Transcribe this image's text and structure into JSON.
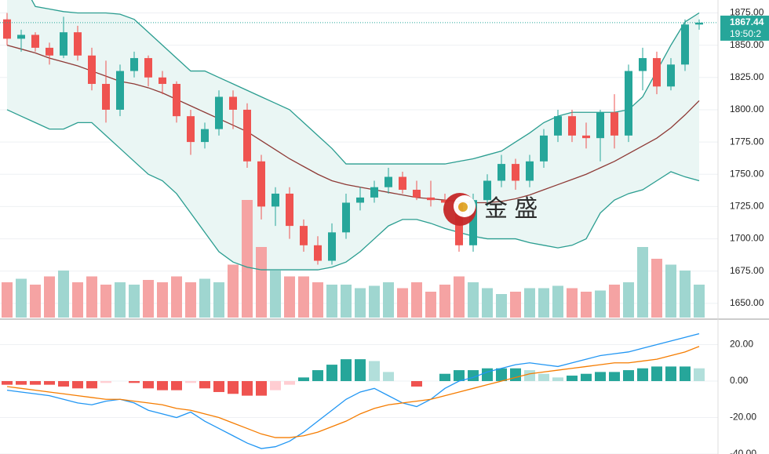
{
  "chart_data": [
    {
      "type": "candlestick",
      "open": [
        1870,
        1855,
        1858,
        1848,
        1842,
        1860,
        1842,
        1820,
        1800,
        1830,
        1840,
        1825,
        1820,
        1795,
        1775,
        1785,
        1810,
        1800,
        1760,
        1725,
        1735,
        1710,
        1695,
        1683,
        1705,
        1728,
        1732,
        1740,
        1748,
        1738,
        1732,
        1730,
        1728,
        1695,
        1730,
        1745,
        1758,
        1745,
        1760,
        1780,
        1795,
        1780,
        1778,
        1798,
        1780,
        1830,
        1840,
        1818,
        1835,
        1866
      ],
      "high": [
        1875,
        1862,
        1860,
        1852,
        1872,
        1865,
        1848,
        1838,
        1835,
        1845,
        1842,
        1830,
        1822,
        1800,
        1790,
        1815,
        1815,
        1805,
        1765,
        1740,
        1740,
        1715,
        1702,
        1712,
        1735,
        1740,
        1745,
        1755,
        1752,
        1745,
        1745,
        1735,
        1732,
        1735,
        1750,
        1765,
        1762,
        1765,
        1785,
        1800,
        1800,
        1790,
        1800,
        1812,
        1835,
        1848,
        1845,
        1840,
        1870,
        1870
      ],
      "low": [
        1850,
        1845,
        1845,
        1835,
        1840,
        1838,
        1815,
        1790,
        1795,
        1825,
        1818,
        1812,
        1790,
        1765,
        1770,
        1780,
        1785,
        1755,
        1715,
        1710,
        1700,
        1690,
        1680,
        1680,
        1700,
        1722,
        1728,
        1735,
        1735,
        1730,
        1725,
        1722,
        1690,
        1690,
        1725,
        1740,
        1738,
        1740,
        1755,
        1775,
        1775,
        1770,
        1760,
        1770,
        1775,
        1815,
        1812,
        1815,
        1830,
        1862
      ],
      "close": [
        1855,
        1858,
        1848,
        1842,
        1860,
        1842,
        1820,
        1800,
        1830,
        1840,
        1825,
        1820,
        1795,
        1775,
        1785,
        1810,
        1800,
        1760,
        1725,
        1735,
        1710,
        1695,
        1683,
        1705,
        1728,
        1732,
        1740,
        1748,
        1738,
        1732,
        1730,
        1728,
        1695,
        1730,
        1745,
        1758,
        1745,
        1760,
        1780,
        1795,
        1780,
        1778,
        1798,
        1780,
        1830,
        1840,
        1818,
        1835,
        1866,
        1867.44
      ],
      "volume": [
        30,
        33,
        28,
        35,
        40,
        30,
        35,
        28,
        30,
        28,
        32,
        30,
        35,
        30,
        33,
        30,
        45,
        100,
        60,
        40,
        35,
        35,
        30,
        28,
        28,
        25,
        27,
        30,
        25,
        30,
        22,
        28,
        35,
        30,
        25,
        20,
        22,
        25,
        25,
        27,
        25,
        22,
        23,
        28,
        30,
        60,
        50,
        45,
        40,
        28
      ],
      "volume_lim": [
        0,
        270
      ],
      "bollinger": {
        "upper": [
          1905,
          1900,
          1880,
          1878,
          1876,
          1875,
          1875,
          1875,
          1874,
          1870,
          1860,
          1850,
          1840,
          1830,
          1830,
          1825,
          1820,
          1815,
          1810,
          1805,
          1800,
          1790,
          1780,
          1770,
          1758,
          1758,
          1758,
          1758,
          1758,
          1758,
          1758,
          1758,
          1760,
          1762,
          1765,
          1768,
          1775,
          1782,
          1790,
          1795,
          1798,
          1798,
          1798,
          1798,
          1800,
          1810,
          1830,
          1850,
          1868,
          1875
        ],
        "middle": [
          1850,
          1847,
          1844,
          1840,
          1837,
          1834,
          1830,
          1826,
          1822,
          1820,
          1817,
          1813,
          1808,
          1803,
          1798,
          1793,
          1788,
          1783,
          1776,
          1769,
          1762,
          1756,
          1750,
          1745,
          1742,
          1740,
          1738,
          1736,
          1734,
          1732,
          1731,
          1730,
          1729,
          1728,
          1728,
          1729,
          1731,
          1734,
          1738,
          1742,
          1746,
          1750,
          1755,
          1760,
          1766,
          1772,
          1778,
          1786,
          1796,
          1807
        ],
        "lower": [
          1800,
          1795,
          1790,
          1785,
          1785,
          1790,
          1790,
          1780,
          1770,
          1760,
          1750,
          1745,
          1735,
          1720,
          1705,
          1690,
          1682,
          1678,
          1676,
          1676,
          1676,
          1676,
          1676,
          1678,
          1682,
          1690,
          1700,
          1710,
          1715,
          1715,
          1712,
          1708,
          1705,
          1702,
          1700,
          1700,
          1700,
          1697,
          1695,
          1693,
          1695,
          1700,
          1720,
          1730,
          1735,
          1738,
          1745,
          1752,
          1748,
          1745
        ]
      },
      "ylim": [
        1639,
        1885
      ],
      "yticks": [
        {
          "value": 1650,
          "label": "1650.00"
        },
        {
          "value": 1675,
          "label": "1675.00"
        },
        {
          "value": 1700,
          "label": "1700.00"
        },
        {
          "value": 1725,
          "label": "1725.00"
        },
        {
          "value": 1750,
          "label": "1750.00"
        },
        {
          "value": 1775,
          "label": "1775.00"
        },
        {
          "value": 1800,
          "label": "1800.00"
        },
        {
          "value": 1825,
          "label": "1825.00"
        },
        {
          "value": 1850,
          "label": "1850.00"
        },
        {
          "value": 1875,
          "label": "1875.00"
        }
      ],
      "last_price": {
        "value": 1867.44,
        "label": "1867.44"
      },
      "last_time": "19:50:2",
      "watermark": "金 盛",
      "grid": true,
      "up_color": "#26a69a",
      "down_color": "#ef5350",
      "volume_up_color": "#9fd6d0",
      "volume_down_color": "#f5a3a3",
      "band_color": "#2a9d90",
      "band_fill": "#eaf6f4",
      "middle_color": "#8e3a36"
    },
    {
      "type": "line",
      "series": [
        {
          "color": "#2196f3",
          "values": [
            -5,
            -6,
            -7,
            -8,
            -10,
            -12,
            -13,
            -11,
            -10,
            -12,
            -16,
            -18,
            -20,
            -17,
            -22,
            -26,
            -30,
            -34,
            -37,
            -36,
            -33,
            -28,
            -22,
            -16,
            -10,
            -6,
            -4,
            -8,
            -12,
            -14,
            -10,
            -4,
            0,
            2,
            5,
            7,
            9,
            10,
            9,
            8,
            10,
            12,
            14,
            15,
            16,
            18,
            20,
            22,
            24,
            26
          ]
        },
        {
          "color": "#f57c00",
          "values": [
            -3,
            -4,
            -5,
            -6,
            -7,
            -8,
            -9,
            -10,
            -10,
            -11,
            -12,
            -13,
            -15,
            -16,
            -18,
            -20,
            -23,
            -26,
            -29,
            -31,
            -31,
            -30,
            -28,
            -25,
            -22,
            -18,
            -15,
            -13,
            -12,
            -11,
            -10,
            -8,
            -6,
            -4,
            -2,
            0,
            2,
            4,
            5,
            6,
            7,
            8,
            9,
            10,
            10,
            11,
            12,
            14,
            16,
            19
          ]
        }
      ],
      "histogram": [
        -2,
        -2,
        -2,
        -2,
        -3,
        -4,
        -4,
        -1,
        0,
        -1,
        -4,
        -5,
        -5,
        -1,
        -4,
        -6,
        -7,
        -8,
        -8,
        -5,
        -2,
        2,
        6,
        9,
        12,
        12,
        11,
        5,
        0,
        -3,
        0,
        4,
        6,
        6,
        7,
        7,
        7,
        6,
        4,
        2,
        3,
        4,
        5,
        5,
        6,
        7,
        8,
        8,
        8,
        7
      ],
      "positive_color": "#26a69a",
      "positive_fade_color": "#b2dfdb",
      "negative_color": "#ef5350",
      "negative_fade_color": "#ffcdd2",
      "ylim": [
        -40,
        32.7
      ],
      "yticks": [
        {
          "value": 20,
          "label": "20.00"
        },
        {
          "value": 0,
          "label": "0.00"
        },
        {
          "value": -20,
          "label": "-20.00"
        },
        {
          "value": -40,
          "label": "-40.00"
        }
      ],
      "grid": true
    }
  ]
}
